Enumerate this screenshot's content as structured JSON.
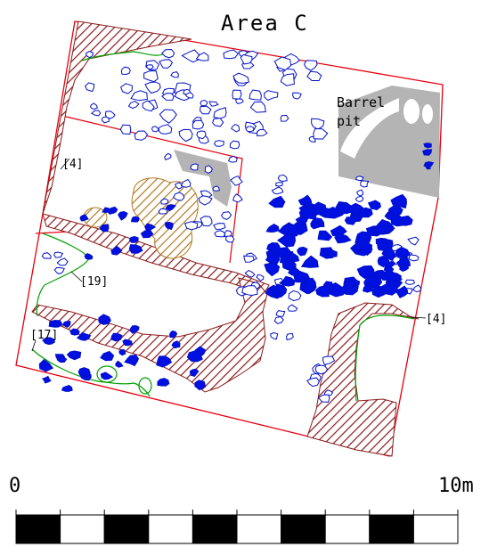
{
  "title": "Area C",
  "labels": {
    "barrel_pit_line1": "Barrel",
    "barrel_pit_line2": "pit",
    "context_4_west": "[4]",
    "context_19": "[19]",
    "context_17": "[17]",
    "context_4_east": "[4]"
  },
  "scale": {
    "start_label": "0",
    "end_label": "10m",
    "segments": 10
  },
  "colors": {
    "boundary": "#e8000f",
    "stone_outline": "#0010c8",
    "stone_fill": "#0010e0",
    "hatch": "#8b1a1a",
    "hatch_orange": "#b07a20",
    "green": "#00a000",
    "grey": "#b4b4b4"
  }
}
